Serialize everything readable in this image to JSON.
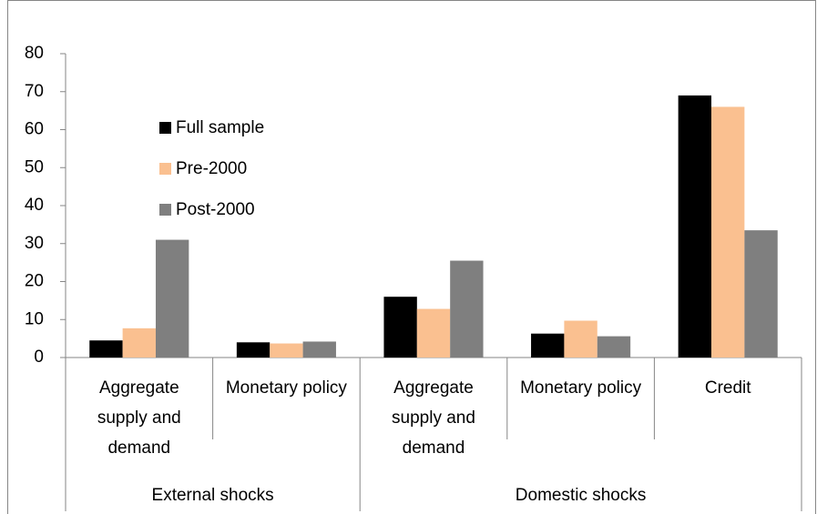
{
  "chart_data": {
    "type": "bar",
    "groups": [
      {
        "name": "External shocks",
        "categories": [
          "Aggregate supply and demand",
          "Monetary policy"
        ]
      },
      {
        "name": "Domestic shocks",
        "categories": [
          "Aggregate supply and demand",
          "Monetary policy",
          "Credit"
        ]
      }
    ],
    "series": [
      {
        "name": "Full sample",
        "color": "#000000",
        "values": [
          4.5,
          4.0,
          16.0,
          6.3,
          69.0
        ]
      },
      {
        "name": "Pre-2000",
        "color": "#fac090",
        "values": [
          7.7,
          3.7,
          12.8,
          9.7,
          66.0
        ]
      },
      {
        "name": "Post-2000",
        "color": "#7f7f7f",
        "values": [
          31.0,
          4.2,
          25.5,
          5.6,
          33.5
        ]
      }
    ],
    "ylim": [
      0,
      80
    ],
    "yticks": [
      0,
      10,
      20,
      30,
      40,
      50,
      60,
      70,
      80
    ],
    "grid": false,
    "legend": "upper left"
  }
}
